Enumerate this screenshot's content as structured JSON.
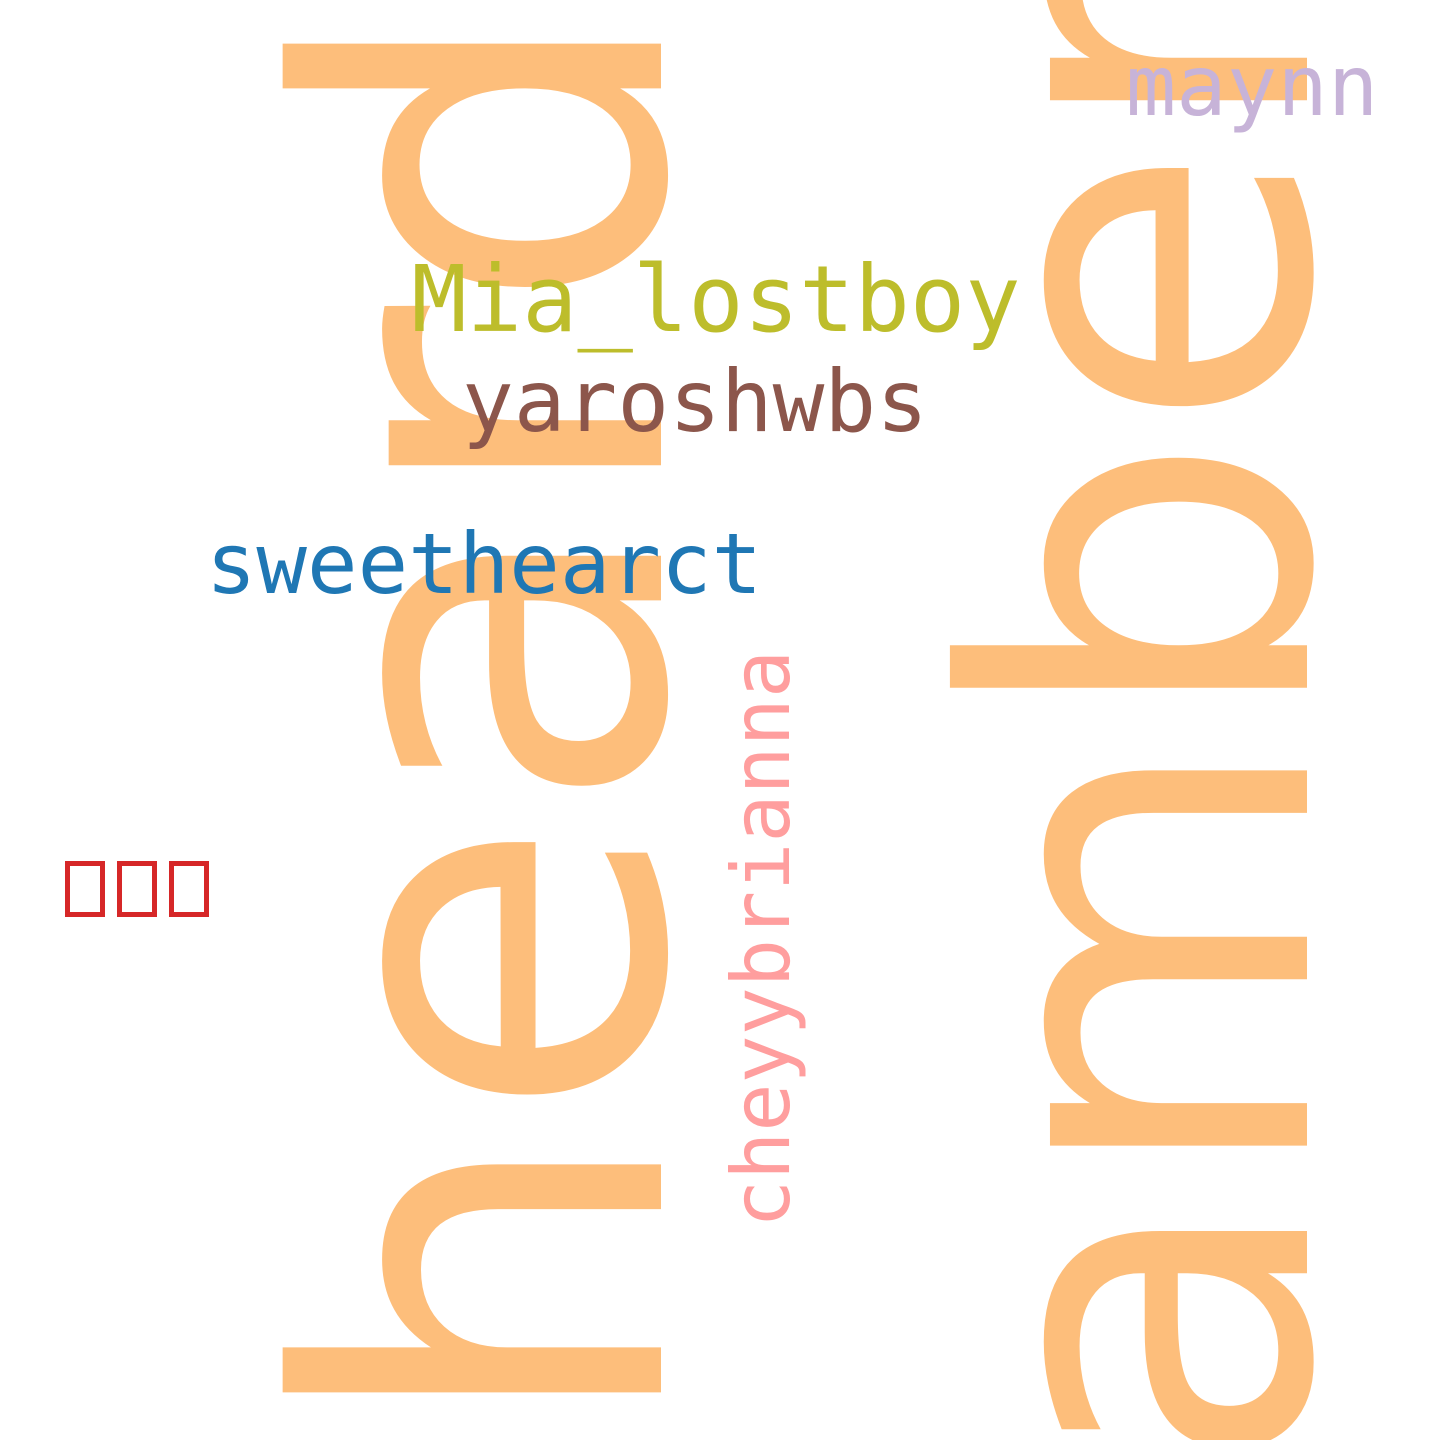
{
  "words": {
    "heard": {
      "text": "heard",
      "color": "#FDBE7B"
    },
    "amber": {
      "text": "amber",
      "color": "#FDBE7B"
    },
    "maynn": {
      "text": "maynn",
      "color": "#C7B3D8"
    },
    "mia_lostboy": {
      "text": "Mia_lostboy",
      "color": "#BDBD2B"
    },
    "yaroshwbs": {
      "text": "yaroshwbs",
      "color": "#8C564B"
    },
    "sweethearct": {
      "text": "sweethearct",
      "color": "#1F77B4"
    },
    "cheyybrianna": {
      "text": "cheyybrianna",
      "color": "#FF9E9E"
    },
    "missing_glyphs": {
      "glyph_count": 3,
      "color": "#D62728"
    }
  }
}
